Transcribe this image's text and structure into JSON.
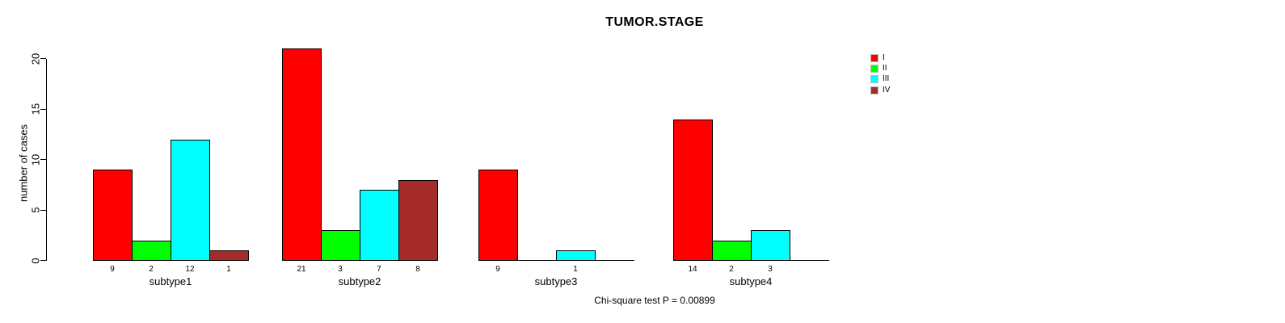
{
  "chart_data": {
    "type": "bar",
    "title": "TUMOR.STAGE",
    "ylabel": "number of cases",
    "xlabel": "",
    "ylim": [
      0,
      20
    ],
    "yticks": [
      "0",
      "5",
      "10",
      "15",
      "20"
    ],
    "grid": false,
    "categories": [
      "subtype1",
      "subtype2",
      "subtype3",
      "subtype4"
    ],
    "series": [
      {
        "name": "I",
        "color": "#ff0000",
        "values": [
          9,
          21,
          9,
          14
        ]
      },
      {
        "name": "II",
        "color": "#00ff00",
        "values": [
          2,
          3,
          0,
          2
        ]
      },
      {
        "name": "III",
        "color": "#00ffff",
        "values": [
          12,
          7,
          1,
          3
        ]
      },
      {
        "name": "IV",
        "color": "#a52a2a",
        "values": [
          1,
          8,
          0,
          0
        ]
      }
    ],
    "value_labels": [
      [
        "9",
        "2",
        "12",
        "1"
      ],
      [
        "21",
        "3",
        "7",
        "8"
      ],
      [
        "9",
        "",
        "1",
        ""
      ],
      [
        "14",
        "2",
        "3",
        ""
      ]
    ],
    "legend": {
      "position": "top-right",
      "entries": [
        "I",
        "II",
        "III",
        "IV"
      ]
    },
    "annotation": "Chi-square test P = 0.00899"
  }
}
